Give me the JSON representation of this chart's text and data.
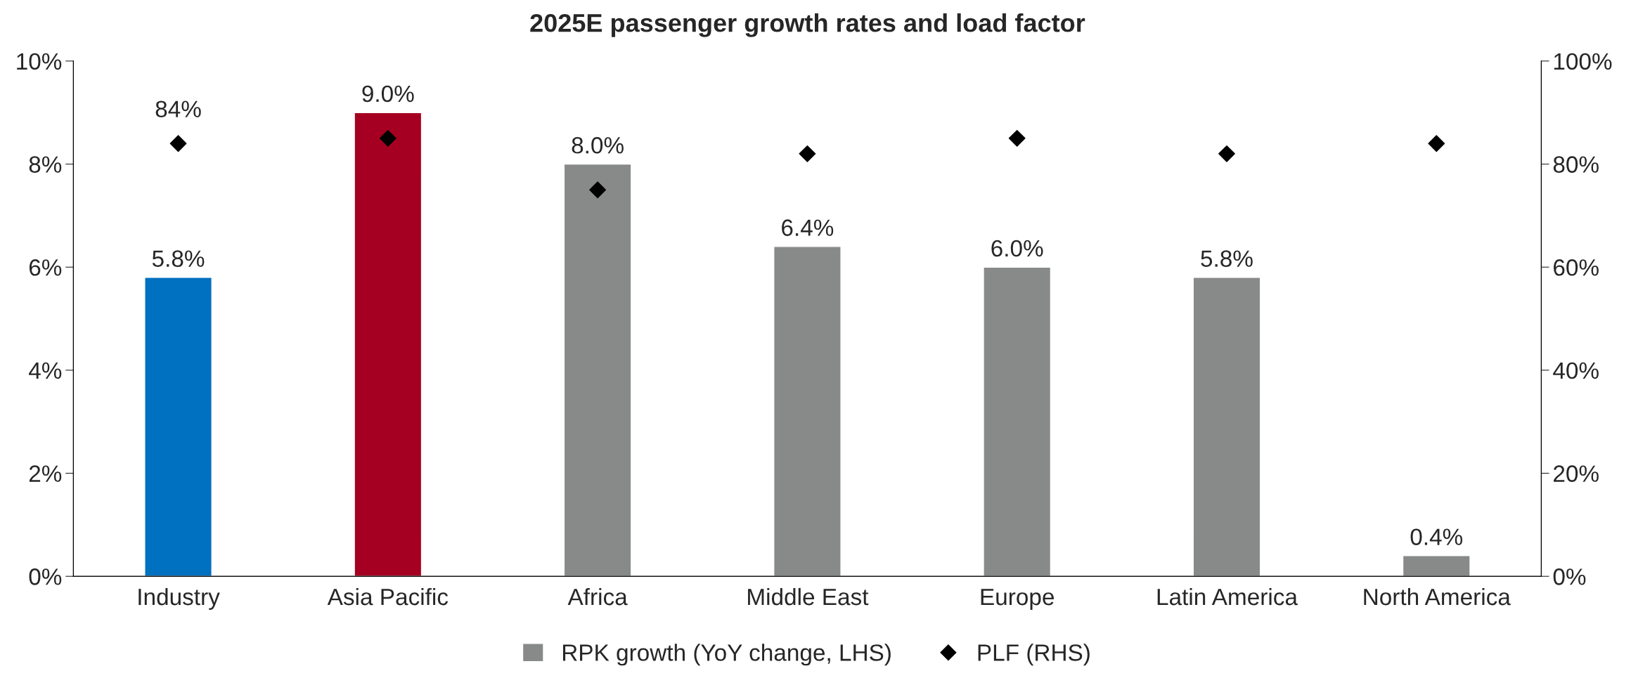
{
  "chart_data": {
    "type": "bar",
    "title": "2025E passenger growth rates and load factor",
    "categories": [
      "Industry",
      "Asia Pacific",
      "Africa",
      "Middle East",
      "Europe",
      "Latin America",
      "North America"
    ],
    "series": [
      {
        "name": "RPK growth (YoY change, LHS)",
        "color": "#878a89",
        "colors": [
          "#0070c0",
          "#a50021",
          "#878a89",
          "#878a89",
          "#878a89",
          "#878a89",
          "#878a89"
        ],
        "values": [
          5.8,
          9.0,
          8.0,
          6.4,
          6.0,
          5.8,
          0.4
        ],
        "value_labels": [
          "5.8%",
          "9.0%",
          "8.0%",
          "6.4%",
          "6.0%",
          "5.8%",
          "0.4%"
        ]
      },
      {
        "name": "PLF (RHS)",
        "type": "scatter",
        "axis": "y2",
        "color": "#000000",
        "marker": "diamond",
        "values": [
          84,
          85,
          75,
          82,
          85,
          82,
          84
        ],
        "value_labels": [
          "84%",
          null,
          null,
          null,
          null,
          null,
          null
        ]
      }
    ],
    "ylim": [
      0,
      10
    ],
    "yticks": [
      {
        "value": 0,
        "label": "0%"
      },
      {
        "value": 2,
        "label": "2%"
      },
      {
        "value": 4,
        "label": "4%"
      },
      {
        "value": 6,
        "label": "6%"
      },
      {
        "value": 8,
        "label": "8%"
      },
      {
        "value": 10,
        "label": "10%"
      }
    ],
    "y2lim": [
      0,
      100
    ],
    "y2ticks": [
      {
        "value": 0,
        "label": "0%"
      },
      {
        "value": 20,
        "label": "20%"
      },
      {
        "value": 40,
        "label": "40%"
      },
      {
        "value": 60,
        "label": "60%"
      },
      {
        "value": 80,
        "label": "80%"
      },
      {
        "value": 100,
        "label": "100%"
      }
    ],
    "grid": false,
    "legend": "bottom"
  }
}
